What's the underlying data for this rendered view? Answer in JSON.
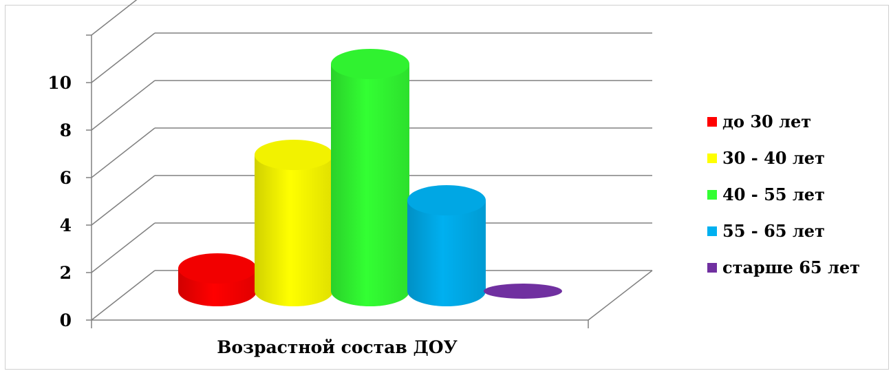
{
  "chart_data": {
    "type": "bar",
    "style": "3d-cylinder",
    "title": "",
    "xlabel": "Возрастной состав ДОУ",
    "ylabel": "",
    "ylim": [
      0,
      12
    ],
    "yticks": [
      "0",
      "2",
      "4",
      "6",
      "8",
      "10"
    ],
    "grid": true,
    "legend_position": "right",
    "series": [
      {
        "name": "до 30 лет",
        "value": 1,
        "color": "#ff0000"
      },
      {
        "name": "30 - 40 лет",
        "value": 6,
        "color": "#ffff00"
      },
      {
        "name": "40 - 55 лет",
        "value": 10,
        "color": "#33ff33"
      },
      {
        "name": "55 - 65 лет",
        "value": 4,
        "color": "#00b0f0"
      },
      {
        "name": "старше 65 лет",
        "value": 0,
        "color": "#7030a0"
      }
    ]
  }
}
